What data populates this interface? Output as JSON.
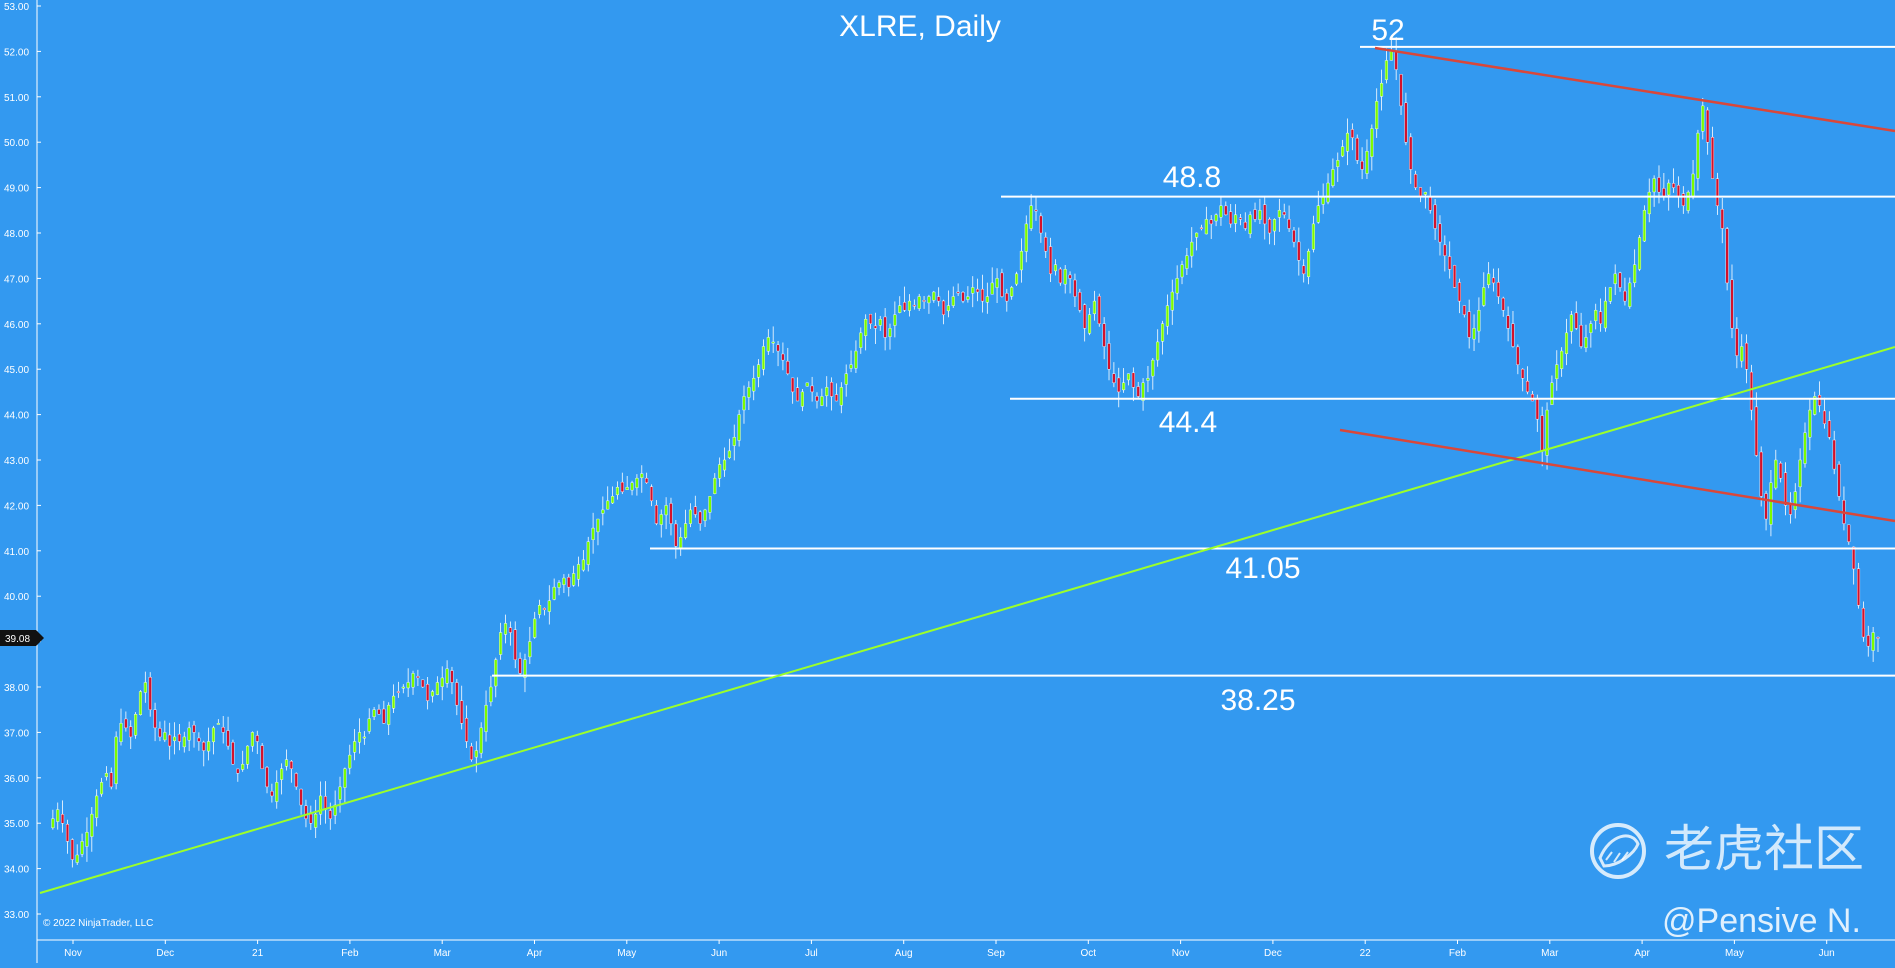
{
  "chart_data": {
    "type": "candlestick",
    "title": "XLRE, Daily",
    "ylim": [
      33,
      53
    ],
    "y_ticks": [
      "33.00",
      "34.00",
      "35.00",
      "36.00",
      "37.00",
      "38.00",
      "39.00",
      "40.00",
      "41.00",
      "42.00",
      "43.00",
      "44.00",
      "45.00",
      "46.00",
      "47.00",
      "48.00",
      "49.00",
      "50.00",
      "51.00",
      "52.00",
      "53.00"
    ],
    "x_ticks": [
      "Nov",
      "Dec",
      "21",
      "Feb",
      "Mar",
      "Apr",
      "May",
      "Jun",
      "Jul",
      "Aug",
      "Sep",
      "Oct",
      "Nov",
      "Dec",
      "22",
      "Feb",
      "Mar",
      "Apr",
      "May",
      "Jun"
    ],
    "current_price": "39.08",
    "copyright": "© 2022 NinjaTrader, LLC",
    "price_path": [
      [
        0,
        34.9
      ],
      [
        1,
        35.1
      ],
      [
        2,
        35.3
      ],
      [
        3,
        35.0
      ],
      [
        4,
        34.6
      ],
      [
        5,
        34.2
      ],
      [
        6,
        34.3
      ],
      [
        7,
        34.6
      ],
      [
        8,
        34.8
      ],
      [
        9,
        35.2
      ],
      [
        10,
        35.6
      ],
      [
        11,
        35.9
      ],
      [
        12,
        36.1
      ],
      [
        13,
        35.8
      ],
      [
        14,
        36.9
      ],
      [
        15,
        37.2
      ],
      [
        16,
        37.1
      ],
      [
        17,
        36.9
      ],
      [
        18,
        37.4
      ],
      [
        19,
        37.9
      ],
      [
        20,
        38.1
      ],
      [
        21,
        37.5
      ],
      [
        22,
        37.1
      ],
      [
        23,
        36.9
      ],
      [
        24,
        37.0
      ],
      [
        25,
        36.7
      ],
      [
        26,
        36.9
      ],
      [
        27,
        36.8
      ],
      [
        28,
        36.9
      ],
      [
        29,
        37.1
      ],
      [
        30,
        37.0
      ],
      [
        31,
        36.8
      ],
      [
        32,
        36.6
      ],
      [
        33,
        36.8
      ],
      [
        34,
        37.1
      ],
      [
        35,
        37.2
      ],
      [
        36,
        37.0
      ],
      [
        37,
        36.7
      ],
      [
        38,
        36.3
      ],
      [
        39,
        36.1
      ],
      [
        40,
        36.3
      ],
      [
        41,
        36.7
      ],
      [
        42,
        37.0
      ],
      [
        43,
        36.8
      ],
      [
        44,
        36.2
      ],
      [
        45,
        35.8
      ],
      [
        46,
        35.6
      ],
      [
        47,
        35.9
      ],
      [
        48,
        36.2
      ],
      [
        49,
        36.4
      ],
      [
        50,
        36.2
      ],
      [
        51,
        35.8
      ],
      [
        52,
        35.4
      ],
      [
        53,
        35.1
      ],
      [
        54,
        35.0
      ],
      [
        55,
        35.2
      ],
      [
        56,
        35.6
      ],
      [
        57,
        35.3
      ],
      [
        58,
        35.1
      ],
      [
        59,
        35.4
      ],
      [
        60,
        35.8
      ],
      [
        61,
        36.2
      ],
      [
        62,
        36.5
      ],
      [
        63,
        36.8
      ],
      [
        64,
        37.0
      ],
      [
        65,
        36.9
      ],
      [
        66,
        37.3
      ],
      [
        67,
        37.5
      ],
      [
        68,
        37.4
      ],
      [
        69,
        37.2
      ],
      [
        70,
        37.6
      ],
      [
        71,
        37.8
      ],
      [
        72,
        37.9
      ],
      [
        73,
        38.0
      ],
      [
        74,
        38.1
      ],
      [
        75,
        38.3
      ],
      [
        76,
        38.2
      ],
      [
        77,
        38.0
      ],
      [
        78,
        37.7
      ],
      [
        79,
        37.9
      ],
      [
        80,
        38.1
      ],
      [
        81,
        38.2
      ],
      [
        82,
        38.4
      ],
      [
        83,
        38.1
      ],
      [
        84,
        37.6
      ],
      [
        85,
        37.2
      ],
      [
        86,
        36.8
      ],
      [
        87,
        36.4
      ],
      [
        88,
        36.6
      ],
      [
        89,
        37.1
      ],
      [
        90,
        37.6
      ],
      [
        91,
        38.0
      ],
      [
        92,
        38.6
      ],
      [
        93,
        39.2
      ],
      [
        94,
        39.4
      ],
      [
        95,
        39.2
      ],
      [
        96,
        38.6
      ],
      [
        97,
        38.3
      ],
      [
        98,
        38.6
      ],
      [
        99,
        39.0
      ],
      [
        100,
        39.5
      ],
      [
        101,
        39.8
      ],
      [
        102,
        39.7
      ],
      [
        103,
        39.9
      ],
      [
        104,
        40.2
      ],
      [
        105,
        40.3
      ],
      [
        106,
        40.4
      ],
      [
        107,
        40.2
      ],
      [
        108,
        40.5
      ],
      [
        109,
        40.7
      ],
      [
        110,
        40.8
      ],
      [
        111,
        41.2
      ],
      [
        112,
        41.5
      ],
      [
        113,
        41.7
      ],
      [
        114,
        41.9
      ],
      [
        115,
        42.1
      ],
      [
        116,
        42.2
      ],
      [
        117,
        42.4
      ],
      [
        118,
        42.3
      ],
      [
        119,
        42.4
      ],
      [
        120,
        42.5
      ],
      [
        121,
        42.6
      ],
      [
        122,
        42.7
      ],
      [
        123,
        42.5
      ],
      [
        124,
        42.1
      ],
      [
        125,
        41.6
      ],
      [
        126,
        41.8
      ],
      [
        127,
        42.0
      ],
      [
        128,
        41.6
      ],
      [
        129,
        41.1
      ],
      [
        130,
        41.3
      ],
      [
        131,
        41.6
      ],
      [
        132,
        41.9
      ],
      [
        133,
        41.8
      ],
      [
        134,
        41.6
      ],
      [
        135,
        41.9
      ],
      [
        136,
        42.2
      ],
      [
        137,
        42.6
      ],
      [
        138,
        42.9
      ],
      [
        139,
        43.0
      ],
      [
        140,
        43.2
      ],
      [
        141,
        43.5
      ],
      [
        142,
        44.0
      ],
      [
        143,
        44.4
      ],
      [
        144,
        44.6
      ],
      [
        145,
        44.8
      ],
      [
        146,
        45.1
      ],
      [
        147,
        45.5
      ],
      [
        148,
        45.7
      ],
      [
        149,
        45.6
      ],
      [
        150,
        45.4
      ],
      [
        151,
        45.2
      ],
      [
        152,
        44.9
      ],
      [
        153,
        44.5
      ],
      [
        154,
        44.3
      ],
      [
        155,
        44.5
      ],
      [
        156,
        44.7
      ],
      [
        157,
        44.5
      ],
      [
        158,
        44.3
      ],
      [
        159,
        44.4
      ],
      [
        160,
        44.6
      ],
      [
        161,
        44.4
      ],
      [
        162,
        44.3
      ],
      [
        163,
        44.6
      ],
      [
        164,
        44.9
      ],
      [
        165,
        45.1
      ],
      [
        166,
        45.4
      ],
      [
        167,
        45.8
      ],
      [
        168,
        46.1
      ],
      [
        169,
        46.0
      ],
      [
        170,
        45.9
      ],
      [
        171,
        46.1
      ],
      [
        172,
        45.7
      ],
      [
        173,
        45.9
      ],
      [
        174,
        46.2
      ],
      [
        175,
        46.4
      ],
      [
        176,
        46.3
      ],
      [
        177,
        46.5
      ],
      [
        178,
        46.4
      ],
      [
        179,
        46.6
      ],
      [
        180,
        46.5
      ],
      [
        181,
        46.6
      ],
      [
        182,
        46.7
      ],
      [
        183,
        46.5
      ],
      [
        184,
        46.2
      ],
      [
        185,
        46.4
      ],
      [
        186,
        46.6
      ],
      [
        187,
        46.7
      ],
      [
        188,
        46.5
      ],
      [
        189,
        46.6
      ],
      [
        190,
        46.8
      ],
      [
        191,
        46.7
      ],
      [
        192,
        46.5
      ],
      [
        193,
        46.6
      ],
      [
        194,
        46.9
      ],
      [
        195,
        47.0
      ],
      [
        196,
        46.6
      ],
      [
        197,
        46.5
      ],
      [
        198,
        46.8
      ],
      [
        199,
        47.1
      ],
      [
        200,
        47.6
      ],
      [
        201,
        48.2
      ],
      [
        202,
        48.6
      ],
      [
        203,
        48.5
      ],
      [
        204,
        48.0
      ],
      [
        205,
        47.6
      ],
      [
        206,
        47.1
      ],
      [
        207,
        47.3
      ],
      [
        208,
        46.9
      ],
      [
        209,
        47.2
      ],
      [
        210,
        47.0
      ],
      [
        211,
        46.6
      ],
      [
        212,
        46.3
      ],
      [
        213,
        45.9
      ],
      [
        214,
        46.2
      ],
      [
        215,
        46.5
      ],
      [
        216,
        46.0
      ],
      [
        217,
        45.5
      ],
      [
        218,
        45.0
      ],
      [
        219,
        44.7
      ],
      [
        220,
        44.5
      ],
      [
        221,
        44.7
      ],
      [
        222,
        44.9
      ],
      [
        223,
        44.6
      ],
      [
        224,
        44.4
      ],
      [
        225,
        44.7
      ],
      [
        226,
        44.8
      ],
      [
        227,
        45.2
      ],
      [
        228,
        45.6
      ],
      [
        229,
        46.0
      ],
      [
        230,
        46.4
      ],
      [
        231,
        46.7
      ],
      [
        232,
        47.0
      ],
      [
        233,
        47.3
      ],
      [
        234,
        47.5
      ],
      [
        235,
        47.8
      ],
      [
        236,
        48.0
      ],
      [
        237,
        48.1
      ],
      [
        238,
        48.3
      ],
      [
        239,
        48.2
      ],
      [
        240,
        48.4
      ],
      [
        241,
        48.6
      ],
      [
        242,
        48.4
      ],
      [
        243,
        48.2
      ],
      [
        244,
        48.4
      ],
      [
        245,
        48.3
      ],
      [
        246,
        48.1
      ],
      [
        247,
        48.4
      ],
      [
        248,
        48.3
      ],
      [
        249,
        48.5
      ],
      [
        250,
        48.2
      ],
      [
        251,
        48.0
      ],
      [
        252,
        48.3
      ],
      [
        253,
        48.5
      ],
      [
        254,
        48.4
      ],
      [
        255,
        48.1
      ],
      [
        256,
        47.8
      ],
      [
        257,
        47.4
      ],
      [
        258,
        47.1
      ],
      [
        259,
        47.6
      ],
      [
        260,
        48.2
      ],
      [
        261,
        48.6
      ],
      [
        262,
        48.8
      ],
      [
        263,
        49.1
      ],
      [
        264,
        49.4
      ],
      [
        265,
        49.6
      ],
      [
        266,
        49.9
      ],
      [
        267,
        50.2
      ],
      [
        268,
        50.1
      ],
      [
        269,
        49.6
      ],
      [
        270,
        49.4
      ],
      [
        271,
        49.8
      ],
      [
        272,
        50.3
      ],
      [
        273,
        50.9
      ],
      [
        274,
        51.3
      ],
      [
        275,
        51.8
      ],
      [
        276,
        52.0
      ],
      [
        277,
        51.6
      ],
      [
        278,
        50.8
      ],
      [
        279,
        50.0
      ],
      [
        280,
        49.4
      ],
      [
        281,
        49.0
      ],
      [
        282,
        48.8
      ],
      [
        283,
        48.9
      ],
      [
        284,
        48.5
      ],
      [
        285,
        48.1
      ],
      [
        286,
        47.8
      ],
      [
        287,
        47.5
      ],
      [
        288,
        47.2
      ],
      [
        289,
        46.8
      ],
      [
        290,
        46.5
      ],
      [
        291,
        46.2
      ],
      [
        292,
        45.7
      ],
      [
        293,
        45.9
      ],
      [
        294,
        46.3
      ],
      [
        295,
        46.8
      ],
      [
        296,
        47.1
      ],
      [
        297,
        46.9
      ],
      [
        298,
        46.6
      ],
      [
        299,
        46.3
      ],
      [
        300,
        45.9
      ],
      [
        301,
        45.5
      ],
      [
        302,
        45.1
      ],
      [
        303,
        44.8
      ],
      [
        304,
        44.5
      ],
      [
        305,
        44.3
      ],
      [
        306,
        43.9
      ],
      [
        307,
        43.2
      ],
      [
        308,
        44.1
      ],
      [
        309,
        44.7
      ],
      [
        310,
        45.1
      ],
      [
        311,
        45.4
      ],
      [
        312,
        45.8
      ],
      [
        313,
        46.2
      ],
      [
        314,
        45.9
      ],
      [
        315,
        45.5
      ],
      [
        316,
        45.7
      ],
      [
        317,
        46.0
      ],
      [
        318,
        46.3
      ],
      [
        319,
        46.0
      ],
      [
        320,
        46.5
      ],
      [
        321,
        46.8
      ],
      [
        322,
        47.1
      ],
      [
        323,
        46.8
      ],
      [
        324,
        46.5
      ],
      [
        325,
        46.9
      ],
      [
        326,
        47.3
      ],
      [
        327,
        47.9
      ],
      [
        328,
        48.5
      ],
      [
        329,
        48.9
      ],
      [
        330,
        49.2
      ],
      [
        331,
        48.9
      ],
      [
        332,
        48.8
      ],
      [
        333,
        49.1
      ],
      [
        334,
        49.0
      ],
      [
        335,
        48.8
      ],
      [
        336,
        48.6
      ],
      [
        337,
        48.9
      ],
      [
        338,
        49.3
      ],
      [
        339,
        50.2
      ],
      [
        340,
        50.8
      ],
      [
        341,
        50.0
      ],
      [
        342,
        49.2
      ],
      [
        343,
        48.6
      ],
      [
        344,
        48.1
      ],
      [
        345,
        46.9
      ],
      [
        346,
        45.9
      ],
      [
        347,
        45.3
      ],
      [
        348,
        45.5
      ],
      [
        349,
        45.0
      ],
      [
        350,
        44.1
      ],
      [
        351,
        43.1
      ],
      [
        352,
        42.2
      ],
      [
        353,
        41.7
      ],
      [
        354,
        42.5
      ],
      [
        355,
        43.0
      ],
      [
        356,
        42.6
      ],
      [
        357,
        42.0
      ],
      [
        358,
        41.8
      ],
      [
        359,
        42.3
      ],
      [
        360,
        43.0
      ],
      [
        361,
        43.6
      ],
      [
        362,
        44.1
      ],
      [
        363,
        44.4
      ],
      [
        364,
        44.2
      ],
      [
        365,
        43.8
      ],
      [
        366,
        43.5
      ],
      [
        367,
        42.8
      ],
      [
        368,
        42.2
      ],
      [
        369,
        41.6
      ],
      [
        370,
        41.2
      ],
      [
        371,
        40.6
      ],
      [
        372,
        39.8
      ],
      [
        373,
        39.1
      ],
      [
        374,
        38.9
      ],
      [
        375,
        39.2
      ],
      [
        376,
        39.08
      ]
    ]
  },
  "levels": [
    {
      "label": "52",
      "value": 52.1
    },
    {
      "label": "48.8",
      "value": 48.8
    },
    {
      "label": "44.4",
      "value": 44.35
    },
    {
      "label": "41.05",
      "value": 41.05
    },
    {
      "label": "38.25",
      "value": 38.25
    }
  ],
  "colors": {
    "background": "#3399f0",
    "up_candle": "#7CFC00",
    "down_candle": "#d4112b",
    "support_line": "#ffffff",
    "trend_up": "#9cff2a",
    "trend_down": "#d9473a",
    "price_badge": "#111111"
  },
  "watermark": {
    "logo_icon": "tiger-community-logo-icon",
    "brand_text": "老虎社区",
    "handle": "@Pensive N."
  }
}
